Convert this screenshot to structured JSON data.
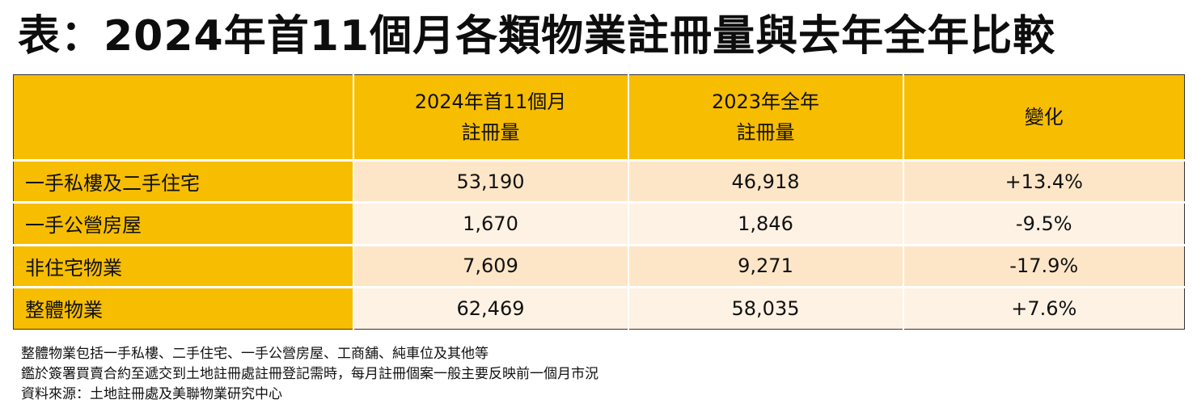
{
  "title": "表：2024年首11個月各類物業註冊量與去年全年比較",
  "table": {
    "headers": [
      {
        "line1": "",
        "line2": ""
      },
      {
        "line1": "2024年首11個月",
        "line2": "註冊量"
      },
      {
        "line1": "2023年全年",
        "line2": "註冊量"
      },
      {
        "line1": "變化",
        "line2": ""
      }
    ],
    "rows": [
      {
        "label": "一手私樓及二手住宅",
        "v2024": "53,190",
        "v2023": "46,918",
        "change": "+13.4%"
      },
      {
        "label": "一手公營房屋",
        "v2024": "1,670",
        "v2023": "1,846",
        "change": "-9.5%"
      },
      {
        "label": "非住宅物業",
        "v2024": "7,609",
        "v2023": "9,271",
        "change": "-17.9%"
      },
      {
        "label": "整體物業",
        "v2024": "62,469",
        "v2023": "58,035",
        "change": "+7.6%"
      }
    ]
  },
  "notes": [
    "整體物業包括一手私樓、二手住宅、一手公營房屋、工商舖、純車位及其他等",
    "鑑於簽署買賣合約至遞交到土地註冊處註冊登記需時，每月註冊個案一般主要反映前一個月市況",
    "資料來源：土地註冊處及美聯物業研究中心"
  ],
  "colors": {
    "header_bg": "#f7bd00",
    "row_bg_a": "#fde6c7",
    "row_bg_b": "#fef2e4",
    "border": "#333333"
  }
}
